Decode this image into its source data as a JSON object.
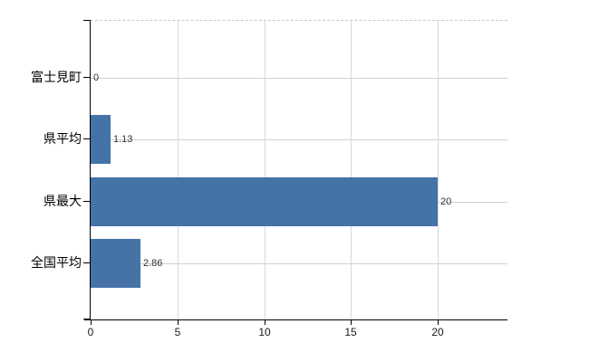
{
  "chart_data": {
    "type": "bar",
    "orientation": "horizontal",
    "title": "",
    "categories": [
      "富士見町",
      "県平均",
      "県最大",
      "全国平均"
    ],
    "values": [
      0,
      1.13,
      20,
      2.86
    ],
    "value_labels": [
      "0",
      "1.13",
      "20",
      "2.86"
    ],
    "x_ticks": [
      0,
      5,
      10,
      15,
      20
    ],
    "x_tick_labels": [
      "0",
      "5",
      "10",
      "15",
      "20"
    ],
    "xlim": [
      0,
      24
    ],
    "grid": true,
    "legend": "none",
    "colors": {
      "bar": "#4572a7",
      "vertical_gridline": "#d9d9d9",
      "horizontal_gridline": "#ccd4cc",
      "axis": "#000000",
      "plot_top_border": "#c9c9c9",
      "value_label_text": "#333333",
      "tick_label_text": "#1a1a1a",
      "category_label_text": "#000000",
      "background": "#ffffff"
    }
  }
}
